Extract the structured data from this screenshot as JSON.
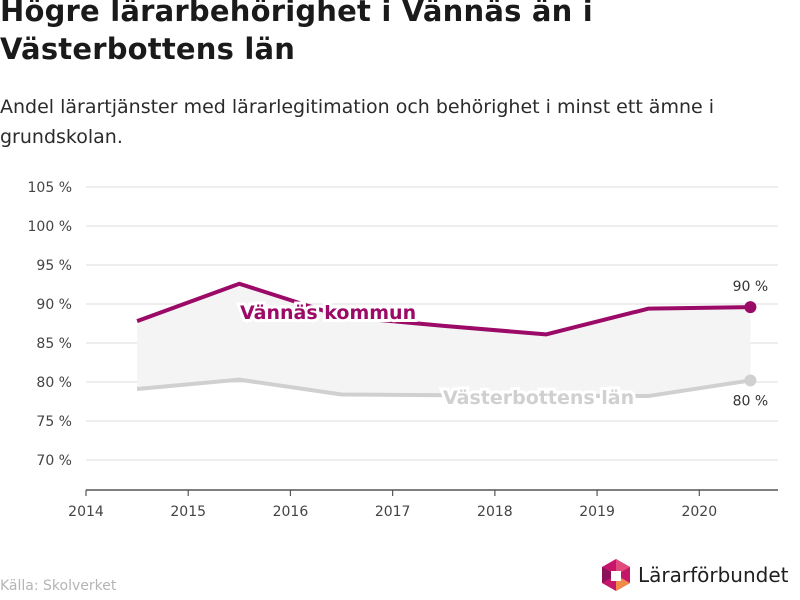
{
  "header": {
    "title": "Högre lärarbehörighet i Vännäs än i Västerbottens län",
    "subtitle": "Andel lärartjänster med lärarlegitimation och behörighet i minst ett ämne i grundskolan."
  },
  "footer": {
    "source": "Källa: Skolverket",
    "brand": "Lärarförbundet"
  },
  "chart_data": {
    "type": "line",
    "x_ticks": [
      "2014",
      "2015",
      "2016",
      "2017",
      "2018",
      "2019",
      "2020"
    ],
    "y_ticks": [
      "70 %",
      "75 %",
      "80 %",
      "85 %",
      "90 %",
      "95 %",
      "100 %",
      "105 %"
    ],
    "ylim": [
      70,
      105
    ],
    "x": [
      "2014/15",
      "2015/16",
      "2016/17",
      "2017/18",
      "2018/19",
      "2019/20",
      "2020/21"
    ],
    "series": [
      {
        "name": "Vännäs kommun",
        "color": "#9b0a66",
        "values": [
          87.8,
          92.6,
          88.4,
          87.2,
          86.1,
          89.4,
          89.6
        ],
        "end_label": "90 %"
      },
      {
        "name": "Västerbottens län",
        "color": "#d0d0d0",
        "values": [
          79.1,
          80.3,
          78.4,
          78.3,
          78.2,
          78.2,
          80.2
        ],
        "end_label": "80 %"
      }
    ],
    "fill_between_color": "#f4f4f4",
    "grid": true
  }
}
